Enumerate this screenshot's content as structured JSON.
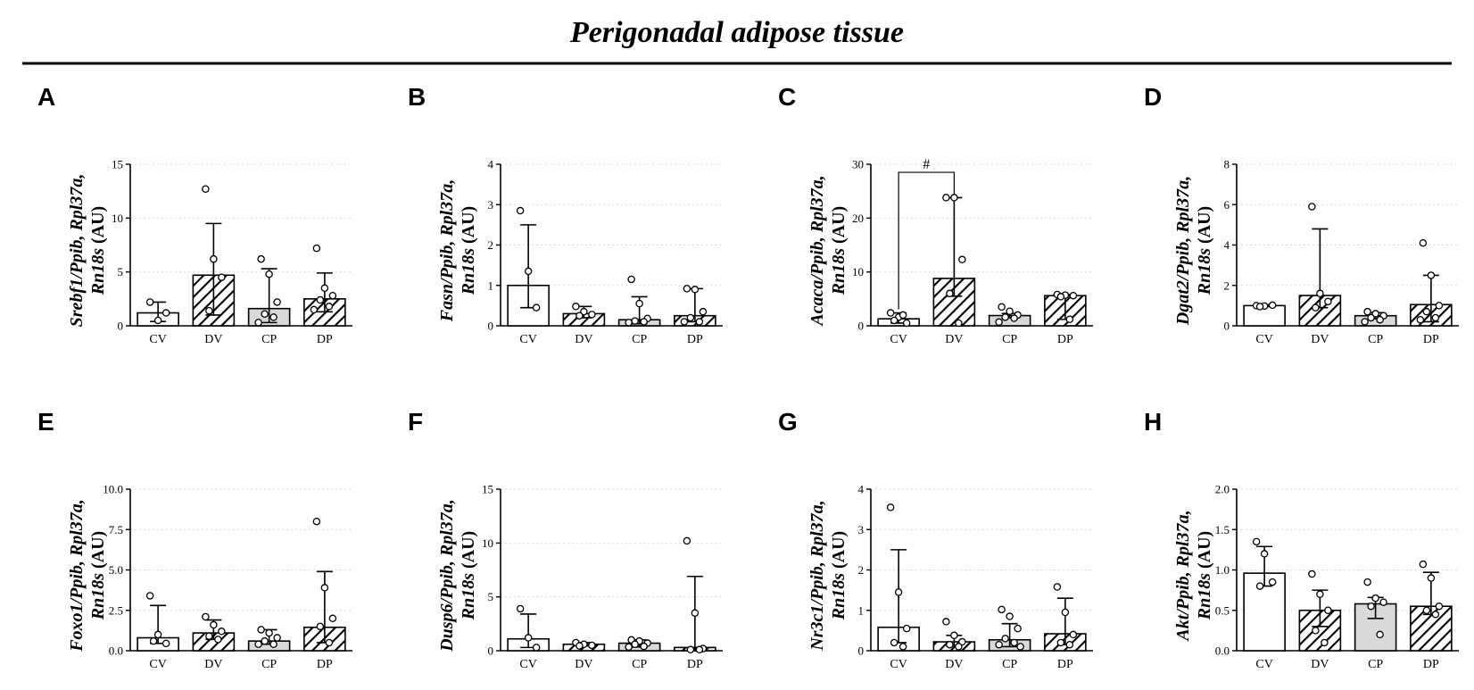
{
  "figure": {
    "title": "Perigonadal adipose tissue",
    "colors": {
      "cv_fill": "#ffffff",
      "cp_fill": "#d9d9d9",
      "hatch_bg": "#ffffff",
      "hatch_line": "#000000",
      "line": "#000000"
    }
  },
  "chart_data": [
    {
      "panel": "A",
      "type": "bar",
      "ylabel": {
        "gene": "Srebf1",
        "rest": "/Ppib, Rpl37a,",
        "gene2": "Rn18s",
        "unit": "(AU)"
      },
      "categories": [
        "CV",
        "DV",
        "CP",
        "DP"
      ],
      "patterns": [
        "plain",
        "hatch",
        "gray",
        "hatch"
      ],
      "ylim": [
        0,
        15
      ],
      "yticks": [
        0,
        5,
        10,
        15
      ],
      "ytick_labels": [
        "0",
        "5",
        "10",
        "15"
      ],
      "values": [
        1.2,
        4.7,
        1.6,
        2.5
      ],
      "err_low": [
        0.4,
        1.0,
        0.3,
        1.3
      ],
      "err_high": [
        2.2,
        9.5,
        5.3,
        4.9
      ],
      "points": [
        [
          2.2,
          0.5,
          1.2
        ],
        [
          12.7,
          6.2,
          4.5,
          1.4
        ],
        [
          6.2,
          4.8,
          2.2,
          1.1,
          0.8,
          0.3
        ],
        [
          7.2,
          3.5,
          2.8,
          2.4,
          1.8,
          1.5
        ]
      ],
      "significance": []
    },
    {
      "panel": "B",
      "type": "bar",
      "ylabel": {
        "gene": "Fasn",
        "rest": "/Ppib, Rpl37a,",
        "gene2": "Rn18s",
        "unit": "(AU)"
      },
      "categories": [
        "CV",
        "DV",
        "CP",
        "DP"
      ],
      "patterns": [
        "plain",
        "hatch",
        "gray",
        "hatch"
      ],
      "ylim": [
        0,
        4
      ],
      "yticks": [
        0,
        1,
        2,
        3,
        4
      ],
      "ytick_labels": [
        "0",
        "1",
        "2",
        "3",
        "4"
      ],
      "values": [
        1.0,
        0.3,
        0.15,
        0.25
      ],
      "err_low": [
        0.45,
        0.2,
        0.05,
        0.1
      ],
      "err_high": [
        2.5,
        0.48,
        0.72,
        0.92
      ],
      "points": [
        [
          2.85,
          1.35,
          0.45
        ],
        [
          0.48,
          0.35,
          0.28,
          0.25
        ],
        [
          1.15,
          0.55,
          0.18,
          0.12,
          0.1,
          0.08
        ],
        [
          0.92,
          0.9,
          0.35,
          0.2,
          0.1,
          0.1
        ]
      ],
      "significance": []
    },
    {
      "panel": "C",
      "type": "bar",
      "ylabel": {
        "gene": "Acaca",
        "rest": "/Ppib, Rpl37a,",
        "gene2": "Rn18s",
        "unit": "(AU)"
      },
      "categories": [
        "CV",
        "DV",
        "CP",
        "DP"
      ],
      "patterns": [
        "plain",
        "hatch",
        "gray",
        "hatch"
      ],
      "ylim": [
        0,
        30
      ],
      "yticks": [
        0,
        10,
        20,
        30
      ],
      "ytick_labels": [
        "0",
        "10",
        "20",
        "30"
      ],
      "values": [
        1.3,
        8.8,
        1.9,
        5.6
      ],
      "err_low": [
        0.5,
        5.5,
        1.5,
        1.2
      ],
      "err_high": [
        2.4,
        23.8,
        2.3,
        5.8
      ],
      "points": [
        [
          2.4,
          1.6,
          0.5,
          1.0,
          2.0
        ],
        [
          23.8,
          23.8,
          12.3,
          6.0,
          0.5
        ],
        [
          3.5,
          2.7,
          2.0,
          1.6,
          1.4,
          0.7
        ],
        [
          5.8,
          5.7,
          5.6,
          5.4,
          1.2
        ]
      ],
      "significance": [
        {
          "from": 0,
          "to": 1,
          "label": "#",
          "y": 28.5
        }
      ]
    },
    {
      "panel": "D",
      "type": "bar",
      "ylabel": {
        "gene": "Dgat2",
        "rest": "/Ppib, Rpl37a,",
        "gene2": "Rn18s",
        "unit": "(AU)"
      },
      "categories": [
        "CV",
        "DV",
        "CP",
        "DP"
      ],
      "patterns": [
        "plain",
        "hatch",
        "gray",
        "hatch"
      ],
      "ylim": [
        0,
        8
      ],
      "yticks": [
        0,
        2,
        4,
        6,
        8
      ],
      "ytick_labels": [
        "0",
        "2",
        "4",
        "6",
        "8"
      ],
      "values": [
        1.0,
        1.5,
        0.5,
        1.05
      ],
      "err_low": [
        0.95,
        0.9,
        0.35,
        0.2
      ],
      "err_high": [
        1.05,
        4.8,
        0.65,
        2.5
      ],
      "points": [
        [
          1.0,
          0.98,
          1.02,
          0.95
        ],
        [
          5.9,
          1.6,
          1.2,
          0.9
        ],
        [
          0.7,
          0.6,
          0.5,
          0.4,
          0.3,
          0.2
        ],
        [
          4.1,
          2.5,
          1.0,
          0.7,
          0.4,
          0.3
        ]
      ],
      "significance": []
    },
    {
      "panel": "E",
      "type": "bar",
      "ylabel": {
        "gene": "Foxo1",
        "rest": "/Ppib, Rpl37a,",
        "gene2": "Rn18s",
        "unit": "(AU)"
      },
      "categories": [
        "CV",
        "DV",
        "CP",
        "DP"
      ],
      "patterns": [
        "plain",
        "hatch",
        "gray",
        "hatch"
      ],
      "ylim": [
        0,
        10
      ],
      "yticks": [
        0,
        2.5,
        5,
        7.5,
        10
      ],
      "ytick_labels": [
        "0.0",
        "2.5",
        "5.0",
        "7.5",
        "10.0"
      ],
      "values": [
        0.8,
        1.1,
        0.6,
        1.45
      ],
      "err_low": [
        0.45,
        0.7,
        0.4,
        0.5
      ],
      "err_high": [
        2.8,
        1.9,
        1.3,
        4.9
      ],
      "points": [
        [
          3.4,
          1.0,
          0.45,
          0.6
        ],
        [
          2.1,
          1.6,
          1.2,
          0.9,
          0.7
        ],
        [
          1.3,
          1.1,
          0.8,
          0.6,
          0.4,
          0.4
        ],
        [
          8.0,
          3.9,
          2.0,
          1.5,
          0.5
        ]
      ],
      "significance": []
    },
    {
      "panel": "F",
      "type": "bar",
      "ylabel": {
        "gene": "Dusp6",
        "rest": "/Ppib, Rpl37a,",
        "gene2": "Rn18s",
        "unit": "(AU)"
      },
      "categories": [
        "CV",
        "DV",
        "CP",
        "DP"
      ],
      "patterns": [
        "plain",
        "hatch",
        "gray",
        "hatch"
      ],
      "ylim": [
        0,
        15
      ],
      "yticks": [
        0,
        5,
        10,
        15
      ],
      "ytick_labels": [
        "0",
        "5",
        "10",
        "15"
      ],
      "values": [
        1.1,
        0.6,
        0.7,
        0.3
      ],
      "err_low": [
        0.3,
        0.45,
        0.35,
        0.1
      ],
      "err_high": [
        3.4,
        0.75,
        1.0,
        6.9
      ],
      "points": [
        [
          3.9,
          1.2,
          0.3
        ],
        [
          0.75,
          0.6,
          0.5,
          0.45
        ],
        [
          1.0,
          0.9,
          0.7,
          0.6,
          0.4,
          0.35
        ],
        [
          10.2,
          3.5,
          0.2,
          0.1,
          0.1
        ]
      ],
      "significance": []
    },
    {
      "panel": "G",
      "type": "bar",
      "ylabel": {
        "gene": "Nr3c1",
        "rest": "/Ppib, Rpl37a,",
        "gene2": "Rn18s",
        "unit": "(AU)"
      },
      "categories": [
        "CV",
        "DV",
        "CP",
        "DP"
      ],
      "patterns": [
        "plain",
        "hatch",
        "gray",
        "hatch"
      ],
      "ylim": [
        0,
        4
      ],
      "yticks": [
        0,
        1,
        2,
        3,
        4
      ],
      "ytick_labels": [
        "0",
        "1",
        "2",
        "3",
        "4"
      ],
      "values": [
        0.58,
        0.22,
        0.27,
        0.42
      ],
      "err_low": [
        0.2,
        0.12,
        0.1,
        0.15
      ],
      "err_high": [
        2.5,
        0.38,
        0.67,
        1.3
      ],
      "points": [
        [
          3.55,
          1.45,
          0.55,
          0.2,
          0.1
        ],
        [
          0.72,
          0.38,
          0.22,
          0.15,
          0.1
        ],
        [
          1.02,
          0.85,
          0.55,
          0.3,
          0.2,
          0.15,
          0.1
        ],
        [
          1.58,
          0.95,
          0.4,
          0.2,
          0.15
        ]
      ],
      "significance": []
    },
    {
      "panel": "H",
      "type": "bar",
      "ylabel": {
        "gene": "Akt",
        "rest": "/Ppib, Rpl37a,",
        "gene2": "Rn18s",
        "unit": "(AU)"
      },
      "categories": [
        "CV",
        "DV",
        "CP",
        "DP"
      ],
      "patterns": [
        "plain",
        "hatch",
        "gray",
        "hatch"
      ],
      "ylim": [
        0,
        2
      ],
      "yticks": [
        0,
        0.5,
        1,
        1.5,
        2
      ],
      "ytick_labels": [
        "0.0",
        "0.5",
        "1.0",
        "1.5",
        "2.0"
      ],
      "values": [
        0.96,
        0.5,
        0.58,
        0.55
      ],
      "err_low": [
        0.8,
        0.3,
        0.4,
        0.45
      ],
      "err_high": [
        1.29,
        0.75,
        0.66,
        0.97
      ],
      "points": [
        [
          1.35,
          1.2,
          0.85,
          0.8
        ],
        [
          0.95,
          0.7,
          0.5,
          0.25,
          0.1
        ],
        [
          0.85,
          0.65,
          0.6,
          0.55,
          0.2
        ],
        [
          1.07,
          0.9,
          0.55,
          0.5,
          0.45
        ]
      ],
      "significance": []
    }
  ]
}
